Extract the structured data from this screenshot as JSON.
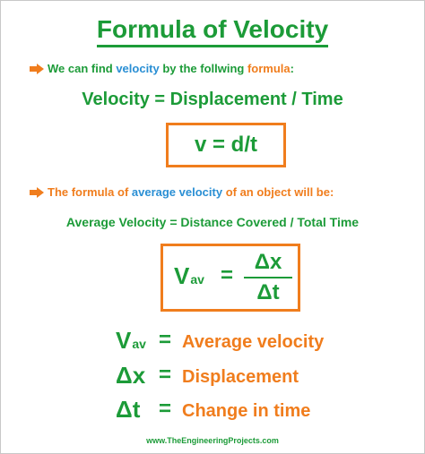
{
  "title": "Formula of Velocity",
  "colors": {
    "green": "#1c9b38",
    "orange": "#f07d1d",
    "blue": "#2a8fd4"
  },
  "intro": {
    "icon": "arrow-right-icon",
    "part1": "We can find ",
    "highlight": "velocity",
    "part2": " by the follwing ",
    "highlight2": "formula",
    "part3": ":"
  },
  "formula_words": "Velocity = Displacement / Time",
  "formula_box": "v = d/t",
  "average_intro": {
    "icon": "arrow-right-icon",
    "part1": "The formula of ",
    "highlight": "average velocity",
    "part2": " of an object will be:"
  },
  "average_formula_words": "Average Velocity = Distance Covered / Total Time",
  "fraction_box": {
    "lhs": "V",
    "lhs_sub": "av",
    "equals": "=",
    "numerator": "Δx",
    "denominator": "Δt"
  },
  "definitions": [
    {
      "symbol": "V",
      "sub": "av",
      "equals": "=",
      "meaning": "Average velocity"
    },
    {
      "symbol": "Δx",
      "sub": "",
      "equals": "=",
      "meaning": "Displacement"
    },
    {
      "symbol": "Δt",
      "sub": "",
      "equals": "=",
      "meaning": "Change in time"
    }
  ],
  "footer": "www.TheEngineeringProjects.com"
}
